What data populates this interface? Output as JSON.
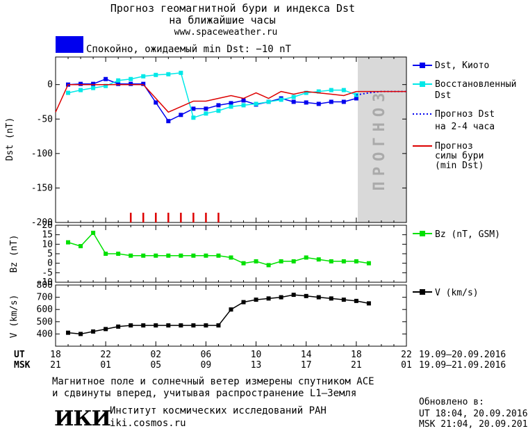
{
  "header": {
    "title_line1": "Прогноз геомагнитной бури и индекса Dst",
    "title_line2": "на ближайшие часы",
    "website": "www.spaceweather.ru",
    "status_text": "Спокойно, ожидаемый min Dst: −10 nT",
    "status_color": "#0000ee"
  },
  "forecast_label": "ПРОГНОЗ",
  "footer": {
    "note_line1": "Магнитное поле и солнечный ветер измерены спутником ACE",
    "note_line2": "и сдвинуты вперед, учитывая распространение L1–Земля",
    "institute_logo": "ИКИ",
    "institute_name": "Институт космических исследований РАН",
    "institute_site": "iki.cosmos.ru",
    "updated_label": "Обновлено в:",
    "updated_ut": "UT  18:04, 20.09.2016",
    "updated_msk": "MSK 21:04, 20.09.2016"
  },
  "time_axis": {
    "ut_label": "UT",
    "msk_label": "MSK",
    "ut_ticks": [
      "18",
      "22",
      "02",
      "06",
      "10",
      "14",
      "18",
      "22"
    ],
    "msk_ticks": [
      "21",
      "01",
      "05",
      "09",
      "13",
      "17",
      "21",
      "01"
    ],
    "ut_range": "19.09–20.09.2016",
    "msk_range": "19.09–21.09.2016"
  },
  "chart_data": [
    {
      "type": "line",
      "ylabel": "Dst (nT)",
      "ylim": [
        -200,
        40
      ],
      "yticks": [
        0,
        -50,
        -100,
        -150,
        -200
      ],
      "x_unit": "hours from 18:00 UT 19.09.2016",
      "xlim": [
        0,
        28
      ],
      "forecast_region": [
        24,
        28
      ],
      "legend": "right",
      "series": [
        {
          "name": "Dst, Киото",
          "color": "#0000ee",
          "marker": "square",
          "x": [
            1,
            2,
            3,
            4,
            5,
            6,
            7,
            8,
            9,
            10,
            11,
            12,
            13,
            14,
            15,
            16,
            17,
            18,
            19,
            20,
            21,
            22,
            23,
            24
          ],
          "y": [
            0,
            1,
            1,
            8,
            1,
            1,
            1,
            -26,
            -53,
            -44,
            -35,
            -35,
            -30,
            -27,
            -23,
            -29,
            -25,
            -20,
            -25,
            -26,
            -28,
            -25,
            -25,
            -20
          ]
        },
        {
          "name": "Восстановленный Dst",
          "color": "#00e8e8",
          "marker": "square",
          "x": [
            1,
            2,
            3,
            4,
            5,
            6,
            7,
            8,
            9,
            10,
            11,
            12,
            13,
            14,
            15,
            16,
            17,
            18,
            19,
            20,
            21,
            22,
            23,
            24
          ],
          "y": [
            -12,
            -8,
            -5,
            -2,
            6,
            8,
            12,
            14,
            15,
            17,
            -48,
            -42,
            -38,
            -32,
            -30,
            -28,
            -25,
            -22,
            -18,
            -12,
            -10,
            -8,
            -8,
            -15
          ]
        },
        {
          "name": "Прогноз Dst на 2-4 часа",
          "color": "#0000ee",
          "style": "dotted",
          "x": [
            24,
            25,
            26,
            27,
            28
          ],
          "y": [
            -15,
            -12,
            -10,
            -10,
            -10
          ]
        },
        {
          "name": "Прогноз силы бури (min Dst)",
          "color": "#dd0000",
          "x": [
            0,
            1,
            2,
            3,
            4,
            5,
            6,
            7,
            8,
            9,
            10,
            11,
            12,
            13,
            14,
            15,
            16,
            17,
            18,
            19,
            20,
            21,
            22,
            23,
            24,
            25,
            26,
            27,
            28
          ],
          "y": [
            -40,
            0,
            0,
            0,
            0,
            0,
            0,
            0,
            -20,
            -40,
            -32,
            -24,
            -24,
            -20,
            -16,
            -20,
            -12,
            -20,
            -10,
            -14,
            -10,
            -12,
            -14,
            -16,
            -10,
            -10,
            -10,
            -10,
            -10
          ]
        }
      ],
      "storm_marks_x": [
        6,
        7,
        8,
        9,
        10,
        11,
        12,
        13
      ]
    },
    {
      "type": "line",
      "ylabel": "Bz (nT)",
      "ylim": [
        -10,
        20
      ],
      "yticks": [
        20,
        15,
        10,
        5,
        0,
        -5,
        -10
      ],
      "series": [
        {
          "name": "Bz (nT, GSM)",
          "color": "#00e000",
          "marker": "square",
          "x": [
            1,
            2,
            3,
            4,
            5,
            6,
            7,
            8,
            9,
            10,
            11,
            12,
            13,
            14,
            15,
            16,
            17,
            18,
            19,
            20,
            21,
            22,
            23,
            24,
            25
          ],
          "y": [
            11,
            9,
            16,
            5,
            5,
            4,
            4,
            4,
            4,
            4,
            4,
            4,
            4,
            3,
            0,
            1,
            -1,
            1,
            1,
            3,
            2,
            1,
            1,
            1,
            0
          ]
        }
      ]
    },
    {
      "type": "line",
      "ylabel": "V (km/s)",
      "ylim": [
        300,
        800
      ],
      "yticks": [
        800,
        700,
        600,
        500,
        400
      ],
      "series": [
        {
          "name": "V (km/s)",
          "color": "#000000",
          "marker": "square",
          "x": [
            1,
            2,
            3,
            4,
            5,
            6,
            7,
            8,
            9,
            10,
            11,
            12,
            13,
            14,
            15,
            16,
            17,
            18,
            19,
            20,
            21,
            22,
            23,
            24,
            25
          ],
          "y": [
            410,
            400,
            420,
            440,
            460,
            470,
            470,
            470,
            470,
            470,
            470,
            470,
            470,
            600,
            660,
            680,
            690,
            700,
            720,
            710,
            700,
            690,
            680,
            670,
            650
          ]
        }
      ]
    }
  ]
}
